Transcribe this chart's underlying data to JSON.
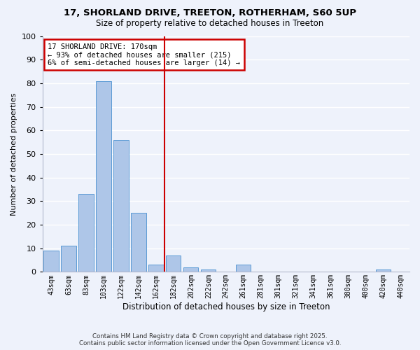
{
  "title": "17, SHORLAND DRIVE, TREETON, ROTHERHAM, S60 5UP",
  "subtitle": "Size of property relative to detached houses in Treeton",
  "xlabel": "Distribution of detached houses by size in Treeton",
  "ylabel": "Number of detached properties",
  "bar_labels": [
    "43sqm",
    "63sqm",
    "83sqm",
    "103sqm",
    "122sqm",
    "142sqm",
    "162sqm",
    "182sqm",
    "202sqm",
    "222sqm",
    "242sqm",
    "261sqm",
    "281sqm",
    "301sqm",
    "321sqm",
    "341sqm",
    "361sqm",
    "380sqm",
    "400sqm",
    "420sqm",
    "440sqm"
  ],
  "bar_values": [
    9,
    11,
    33,
    81,
    56,
    25,
    3,
    7,
    2,
    1,
    0,
    3,
    0,
    0,
    0,
    0,
    0,
    0,
    0,
    1,
    0
  ],
  "bar_color": "#aec6e8",
  "bar_edge_color": "#5b9bd5",
  "vline_x": 6.5,
  "vline_color": "#cc0000",
  "ylim": [
    0,
    100
  ],
  "yticks": [
    0,
    10,
    20,
    30,
    40,
    50,
    60,
    70,
    80,
    90,
    100
  ],
  "annotation_line1": "17 SHORLAND DRIVE: 170sqm",
  "annotation_line2": "← 93% of detached houses are smaller (215)",
  "annotation_line3": "6% of semi-detached houses are larger (14) →",
  "annotation_box_color": "#ffffff",
  "annotation_box_edge": "#cc0000",
  "bg_color": "#eef2fb",
  "grid_color": "#ffffff",
  "footer_line1": "Contains HM Land Registry data © Crown copyright and database right 2025.",
  "footer_line2": "Contains public sector information licensed under the Open Government Licence v3.0."
}
